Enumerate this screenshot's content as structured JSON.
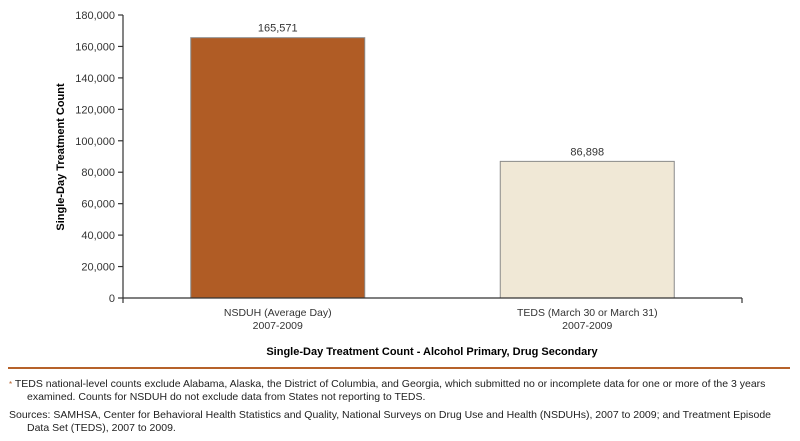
{
  "chart_data": {
    "type": "bar",
    "categories": [
      [
        "NSDUH (Average Day)",
        "2007-2009"
      ],
      [
        "TEDS (March 30 or March 31)",
        "2007-2009"
      ]
    ],
    "values": [
      165571,
      86898
    ],
    "data_labels": [
      "165,571",
      "86,898"
    ],
    "colors": [
      "#b05c25",
      "#f0e8d6"
    ],
    "title": "",
    "xlabel": "Single-Day Treatment Count - Alcohol Primary, Drug Secondary",
    "ylabel": "Single-Day Treatment Count",
    "ylim": [
      0,
      180000
    ],
    "yticks": [
      "0",
      "20,000",
      "40,000",
      "60,000",
      "80,000",
      "100,000",
      "120,000",
      "140,000",
      "160,000",
      "180,000"
    ],
    "grid": false,
    "legend": "none"
  },
  "footnotes": {
    "asterisk": "*",
    "note": "TEDS national-level counts exclude Alabama, Alaska, the District of Columbia, and Georgia, which submitted no or incomplete data for one or more of the 3 years examined. Counts for NSDUH do not exclude data from States not reporting to TEDS.",
    "sources": "Sources: SAMHSA, Center for Behavioral Health Statistics and Quality, National Surveys on Drug Use and Health (NSDUHs), 2007 to 2009; and Treatment Episode Data Set (TEDS), 2007 to 2009."
  },
  "accent": "#b6622a"
}
